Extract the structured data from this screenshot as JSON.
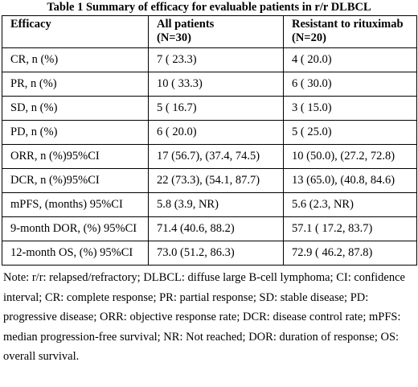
{
  "title": "Table 1 Summary of efficacy for evaluable patients in r/r DLBCL",
  "headers": {
    "col1": "Efficacy",
    "col2_line1": "All patients",
    "col2_line2": "(N=30)",
    "col3_line1": "Resistant to rituximab",
    "col3_line2": "(N=20)"
  },
  "rows": [
    [
      "CR, n (%)",
      "7 ( 23.3)",
      "4 ( 20.0)"
    ],
    [
      "PR, n (%)",
      "10 ( 33.3)",
      "6 ( 30.0)"
    ],
    [
      "SD, n (%)",
      "5 ( 16.7)",
      "3 ( 15.0)"
    ],
    [
      "PD, n (%)",
      "6 ( 20.0)",
      "5 ( 25.0)"
    ],
    [
      "ORR, n (%)95%CI",
      "17 (56.7), (37.4, 74.5)",
      "10 (50.0), (27.2, 72.8)"
    ],
    [
      "DCR, n (%)95%CI",
      "22 (73.3), (54.1, 87.7)",
      "13 (65.0), (40.8, 84.6)"
    ],
    [
      "mPFS, (months) 95%CI",
      "5.8 (3.9, NR)",
      "5.6 (2.3, NR)"
    ],
    [
      "9-month DOR, (%) 95%CI",
      "71.4 (40.6, 88.2)",
      "57.1 ( 17.2, 83.7)"
    ],
    [
      "12-month OS, (%) 95%CI",
      "73.0 (51.2, 86.3)",
      "72.9 ( 46.2, 87.8)"
    ]
  ],
  "note": "Note: r/r: relapsed/refractory; DLBCL: diffuse large B-cell lymphoma; CI: confidence interval; CR: complete response; PR: partial response; SD: stable disease; PD: progressive disease; ORR: objective response rate; DCR: disease control rate; mPFS: median progression-free survival; NR: Not reached; DOR: duration of response; OS: overall survival."
}
